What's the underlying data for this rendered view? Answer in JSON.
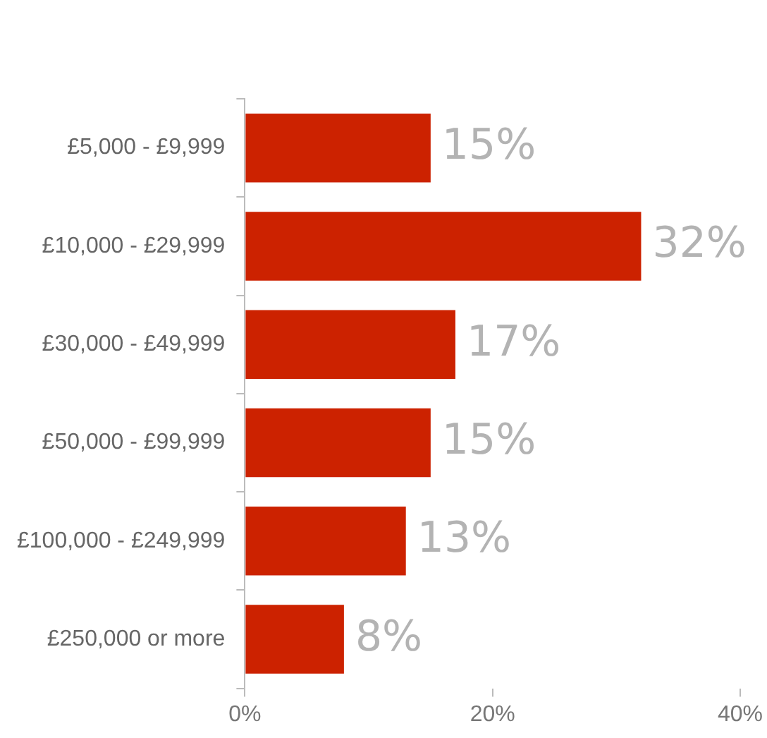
{
  "chart_data": {
    "type": "bar",
    "orientation": "horizontal",
    "categories": [
      "£5,000 - £9,999",
      "£10,000 - £29,999",
      "£30,000 - £49,999",
      "£50,000 - £99,999",
      "£100,000 - £249,999",
      "£250,000 or more"
    ],
    "values": [
      15,
      32,
      17,
      15,
      13,
      8
    ],
    "value_labels": [
      "15%",
      "32%",
      "17%",
      "15%",
      "13%",
      "8%"
    ],
    "color": "#cc2200",
    "xlim": [
      0,
      40
    ],
    "xticks": [
      {
        "value": 0,
        "label": "0%"
      },
      {
        "value": 20,
        "label": "20%"
      },
      {
        "value": 40,
        "label": "40%"
      }
    ],
    "grid": false,
    "legend": false
  }
}
